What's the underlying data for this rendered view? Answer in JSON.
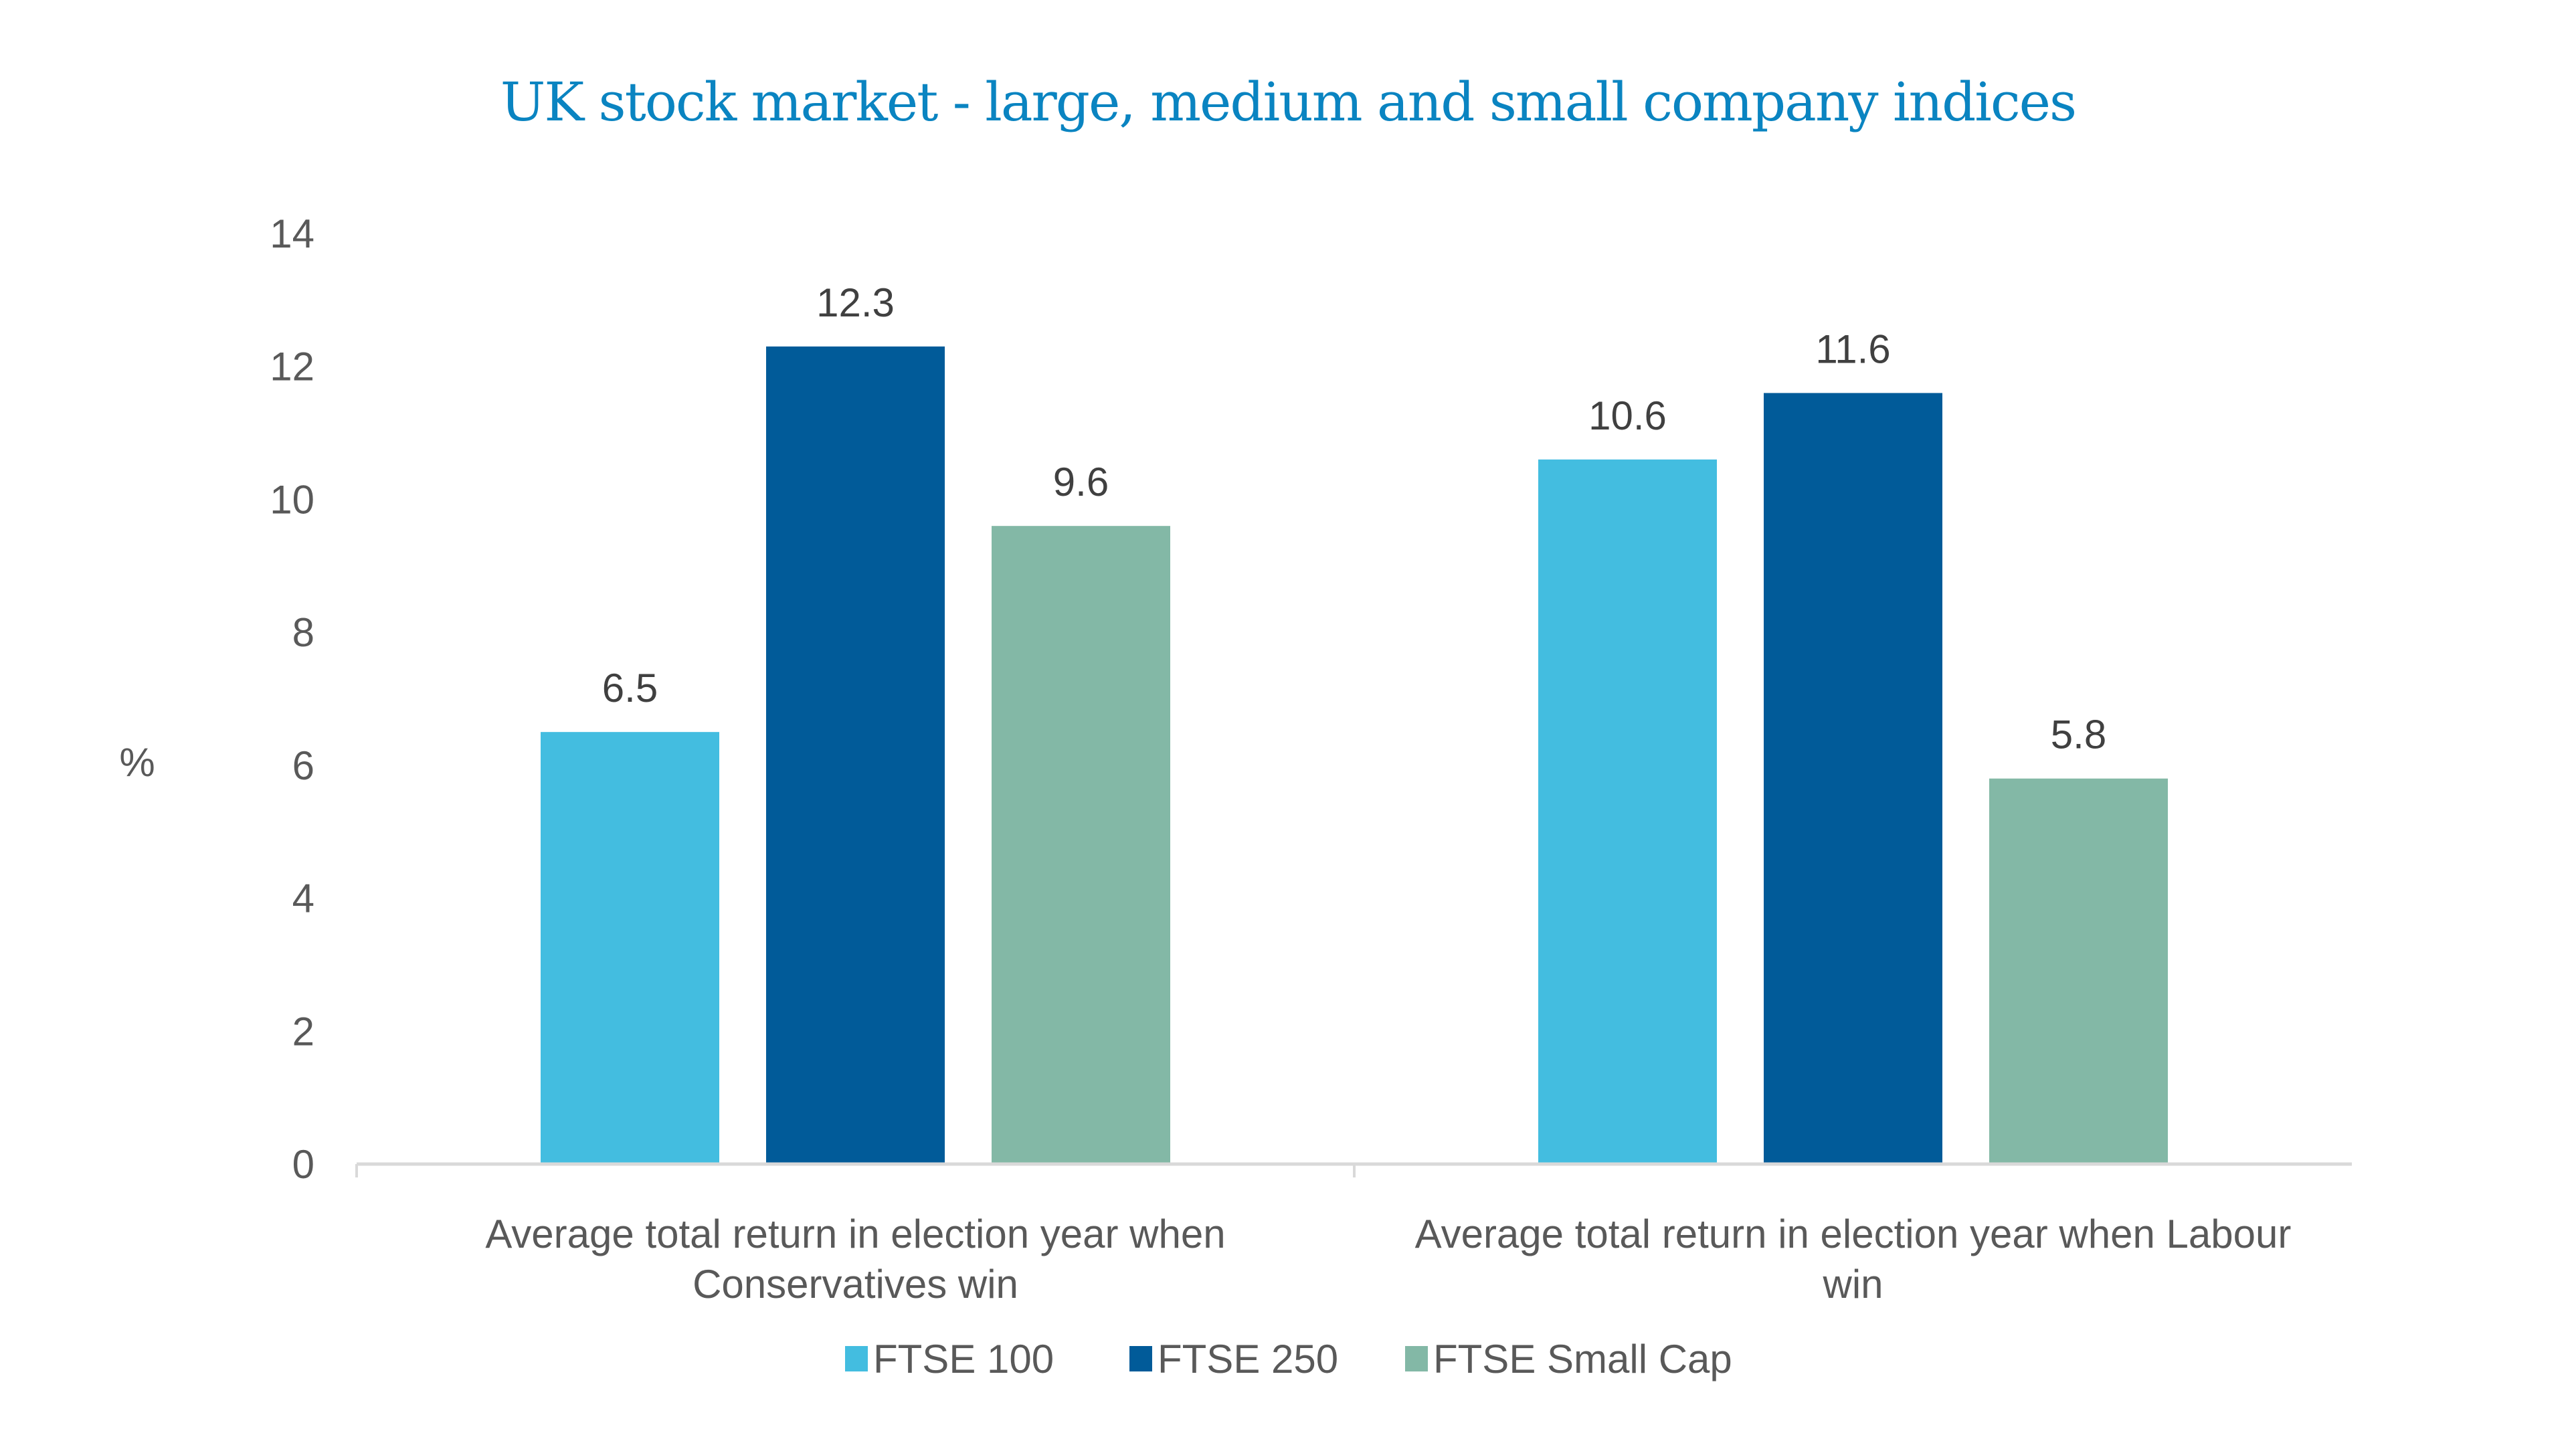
{
  "chart_data": {
    "type": "bar",
    "title": "UK stock market - large, medium and small company indices",
    "xlabel": "",
    "ylabel": "%",
    "ylim": [
      0,
      14
    ],
    "yticks": [
      0,
      2,
      4,
      6,
      8,
      10,
      12,
      14
    ],
    "grid": false,
    "legend_position": "bottom",
    "categories": [
      [
        "Average total return in election year when",
        "Conservatives win"
      ],
      [
        "Average total return in election year when Labour",
        "win"
      ]
    ],
    "series": [
      {
        "name": "FTSE 100",
        "color": "#43BDE0",
        "values": [
          6.5,
          10.6
        ]
      },
      {
        "name": "FTSE 250",
        "color": "#015B99",
        "values": [
          12.3,
          11.6
        ]
      },
      {
        "name": "FTSE Small Cap",
        "color": "#83B8A6",
        "values": [
          9.6,
          5.8
        ]
      }
    ],
    "axis_color": "#D9D9D9"
  }
}
